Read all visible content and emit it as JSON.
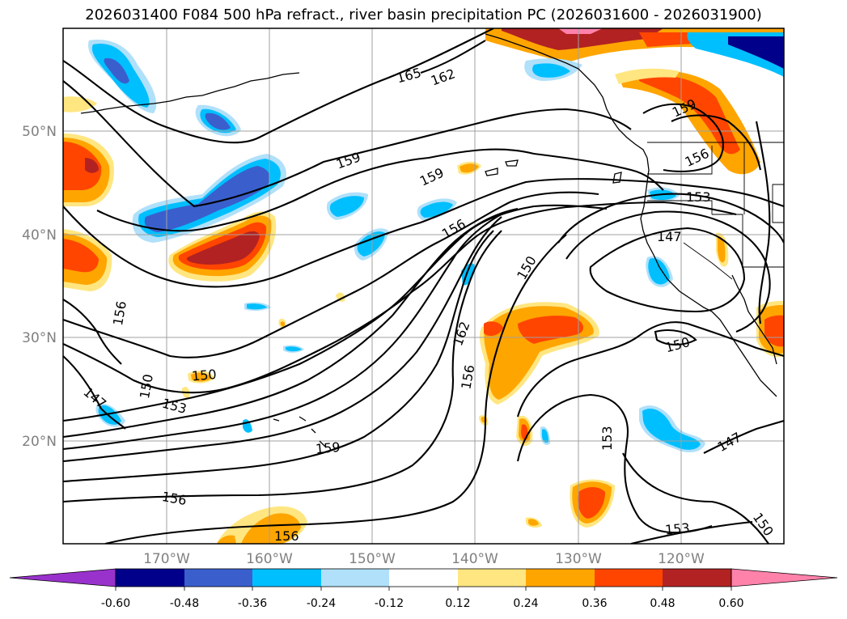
{
  "title": "2026031400 F084 500 hPa refract., river basin precipitation PC (2026031600 - 2026031900)",
  "lat_labels": [
    {
      "text": "50°N",
      "lat": 50
    },
    {
      "text": "40°N",
      "lat": 40
    },
    {
      "text": "30°N",
      "lat": 30
    },
    {
      "text": "20°N",
      "lat": 20
    }
  ],
  "lon_labels": [
    {
      "text": "170°W",
      "lon": -170
    },
    {
      "text": "160°W",
      "lon": -160
    },
    {
      "text": "150°W",
      "lon": -150
    },
    {
      "text": "140°W",
      "lon": -140
    },
    {
      "text": "130°W",
      "lon": -130
    },
    {
      "text": "120°W",
      "lon": -120
    }
  ],
  "colorbar": {
    "colors": [
      "#9932cc",
      "#00008b",
      "#3a5fcd",
      "#00bfff",
      "#b0e0fa",
      "#ffffff",
      "#ffe680",
      "#ffa500",
      "#ff4500",
      "#b22222",
      "#ff82ab"
    ],
    "tick_labels": [
      "-0.60",
      "-0.48",
      "-0.36",
      "-0.24",
      "-0.12",
      "0.12",
      "0.24",
      "0.36",
      "0.48",
      "0.60"
    ]
  },
  "contour_labels": [
    {
      "text": "165"
    },
    {
      "text": "162"
    },
    {
      "text": "159"
    },
    {
      "text": "159"
    },
    {
      "text": "156"
    },
    {
      "text": "156"
    },
    {
      "text": "153"
    },
    {
      "text": "147"
    },
    {
      "text": "150"
    },
    {
      "text": "162"
    },
    {
      "text": "156"
    },
    {
      "text": "150"
    },
    {
      "text": "150"
    },
    {
      "text": "147"
    },
    {
      "text": "150"
    },
    {
      "text": "153"
    },
    {
      "text": "159"
    },
    {
      "text": "156"
    },
    {
      "text": "156"
    },
    {
      "text": "153"
    },
    {
      "text": "147"
    },
    {
      "text": "153"
    },
    {
      "text": "150"
    },
    {
      "text": "159"
    },
    {
      "text": "156"
    }
  ]
}
